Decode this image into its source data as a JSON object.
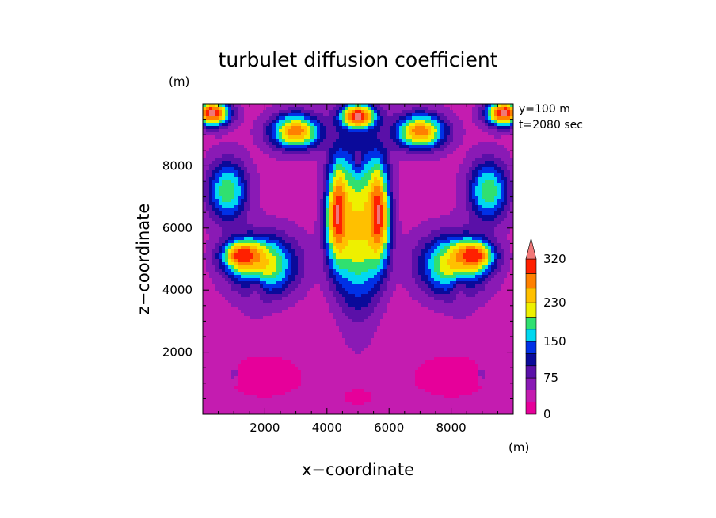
{
  "chart_data": {
    "type": "heatmap",
    "title": "turbulet diffusion coefficient",
    "xlabel": "x−coordinate",
    "ylabel": "z−coordinate",
    "x_unit": "(m)",
    "y_unit": "(m)",
    "xlim": [
      0,
      10000
    ],
    "ylim": [
      0,
      10000
    ],
    "x_ticks": [
      2000,
      4000,
      6000,
      8000
    ],
    "y_ticks": [
      2000,
      4000,
      6000,
      8000
    ],
    "x_tick_labels": [
      "2000",
      "4000",
      "6000",
      "8000"
    ],
    "y_tick_labels": [
      "2000",
      "4000",
      "6000",
      "8000"
    ],
    "annotations": [
      "y=100  m",
      "t=2080 sec"
    ],
    "colorbar": {
      "levels": [
        0,
        25,
        50,
        75,
        100,
        125,
        150,
        175,
        200,
        230,
        260,
        290,
        320
      ],
      "tick_labels": [
        "0",
        "75",
        "150",
        "230",
        "320"
      ],
      "tick_values": [
        0,
        75,
        150,
        230,
        320
      ],
      "colors": [
        "#e6009a",
        "#c41cb0",
        "#8a1ab5",
        "#5a10a8",
        "#0a0a9a",
        "#0030e6",
        "#00d8f0",
        "#30e070",
        "#eef000",
        "#ffc000",
        "#ff8000",
        "#ff2000",
        "#f07878"
      ],
      "extend": "max"
    },
    "field": {
      "background": 40,
      "features": [
        {
          "x": 5000,
          "z": 3000,
          "rx": 2200,
          "rz": 1600,
          "v": 30
        },
        {
          "x": 2000,
          "z": 1200,
          "rx": 1800,
          "rz": 1000,
          "v": 10
        },
        {
          "x": 8000,
          "z": 1200,
          "rx": 1800,
          "rz": 1000,
          "v": 10
        },
        {
          "x": 5000,
          "z": 600,
          "rx": 1200,
          "rz": 800,
          "v": 20
        },
        {
          "x": 2000,
          "z": 4800,
          "rx": 1300,
          "rz": 1200,
          "v": 220
        },
        {
          "x": 8000,
          "z": 4800,
          "rx": 1300,
          "rz": 1200,
          "v": 220
        },
        {
          "x": 1300,
          "z": 5100,
          "rx": 800,
          "rz": 600,
          "v": 320
        },
        {
          "x": 8700,
          "z": 5100,
          "rx": 800,
          "rz": 600,
          "v": 320
        },
        {
          "x": 1700,
          "z": 3800,
          "rx": 400,
          "rz": 700,
          "v": 70
        },
        {
          "x": 8300,
          "z": 3800,
          "rx": 400,
          "rz": 700,
          "v": 70
        },
        {
          "x": 800,
          "z": 7200,
          "rx": 800,
          "rz": 1200,
          "v": 200
        },
        {
          "x": 9200,
          "z": 7200,
          "rx": 800,
          "rz": 1200,
          "v": 200
        },
        {
          "x": 3000,
          "z": 9100,
          "rx": 1000,
          "rz": 700,
          "v": 280
        },
        {
          "x": 7000,
          "z": 9100,
          "rx": 1000,
          "rz": 700,
          "v": 280
        },
        {
          "x": 300,
          "z": 9700,
          "rx": 700,
          "rz": 500,
          "v": 330
        },
        {
          "x": 9700,
          "z": 9700,
          "rx": 700,
          "rz": 500,
          "v": 330
        },
        {
          "x": 5000,
          "z": 6000,
          "rx": 900,
          "rz": 3200,
          "v": 230
        },
        {
          "x": 4350,
          "z": 6500,
          "rx": 450,
          "rz": 2000,
          "v": 330
        },
        {
          "x": 5650,
          "z": 6500,
          "rx": 450,
          "rz": 2000,
          "v": 330
        },
        {
          "x": 5000,
          "z": 9600,
          "rx": 700,
          "rz": 500,
          "v": 330
        },
        {
          "x": 5000,
          "z": 8200,
          "rx": 150,
          "rz": 400,
          "v": 80
        },
        {
          "x": 3000,
          "z": 7400,
          "rx": 1000,
          "rz": 900,
          "v": 50
        },
        {
          "x": 7000,
          "z": 7400,
          "rx": 1000,
          "rz": 900,
          "v": 50
        },
        {
          "x": 1000,
          "z": 1300,
          "rx": 150,
          "rz": 300,
          "v": 70
        },
        {
          "x": 9000,
          "z": 1300,
          "rx": 150,
          "rz": 300,
          "v": 70
        }
      ]
    }
  }
}
